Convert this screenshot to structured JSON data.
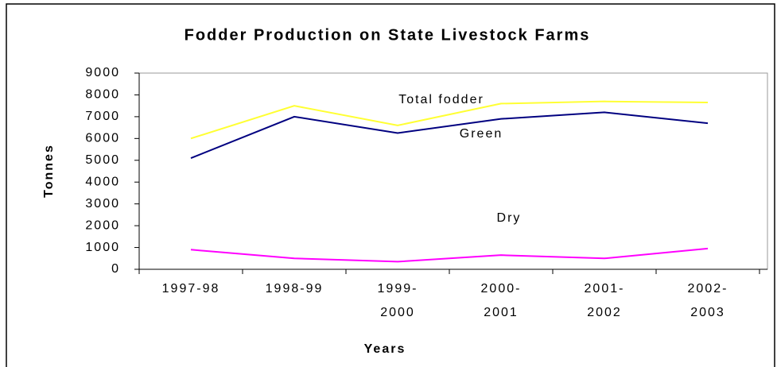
{
  "chart_data": {
    "type": "line",
    "title": "Fodder Production on State Livestock Farms",
    "x_label": "Years",
    "y_label": "Tonnes",
    "categories": [
      "1997-98",
      "1998-99",
      "1999-2000",
      "2000-2001",
      "2001-2002",
      "2002-2003"
    ],
    "series": [
      {
        "name": "Total fodder",
        "color": "#ffff33",
        "values": [
          6000,
          7500,
          6600,
          7600,
          7700,
          7650
        ]
      },
      {
        "name": "Green",
        "color": "#000080",
        "values": [
          5100,
          7000,
          6250,
          6900,
          7200,
          6700
        ]
      },
      {
        "name": "Dry",
        "color": "#ff00ff",
        "values": [
          900,
          500,
          350,
          650,
          500,
          950
        ]
      }
    ],
    "ylim": [
      0,
      9000
    ],
    "yticks": [
      0,
      1000,
      2000,
      3000,
      4000,
      5000,
      6000,
      7000,
      8000,
      9000
    ]
  }
}
